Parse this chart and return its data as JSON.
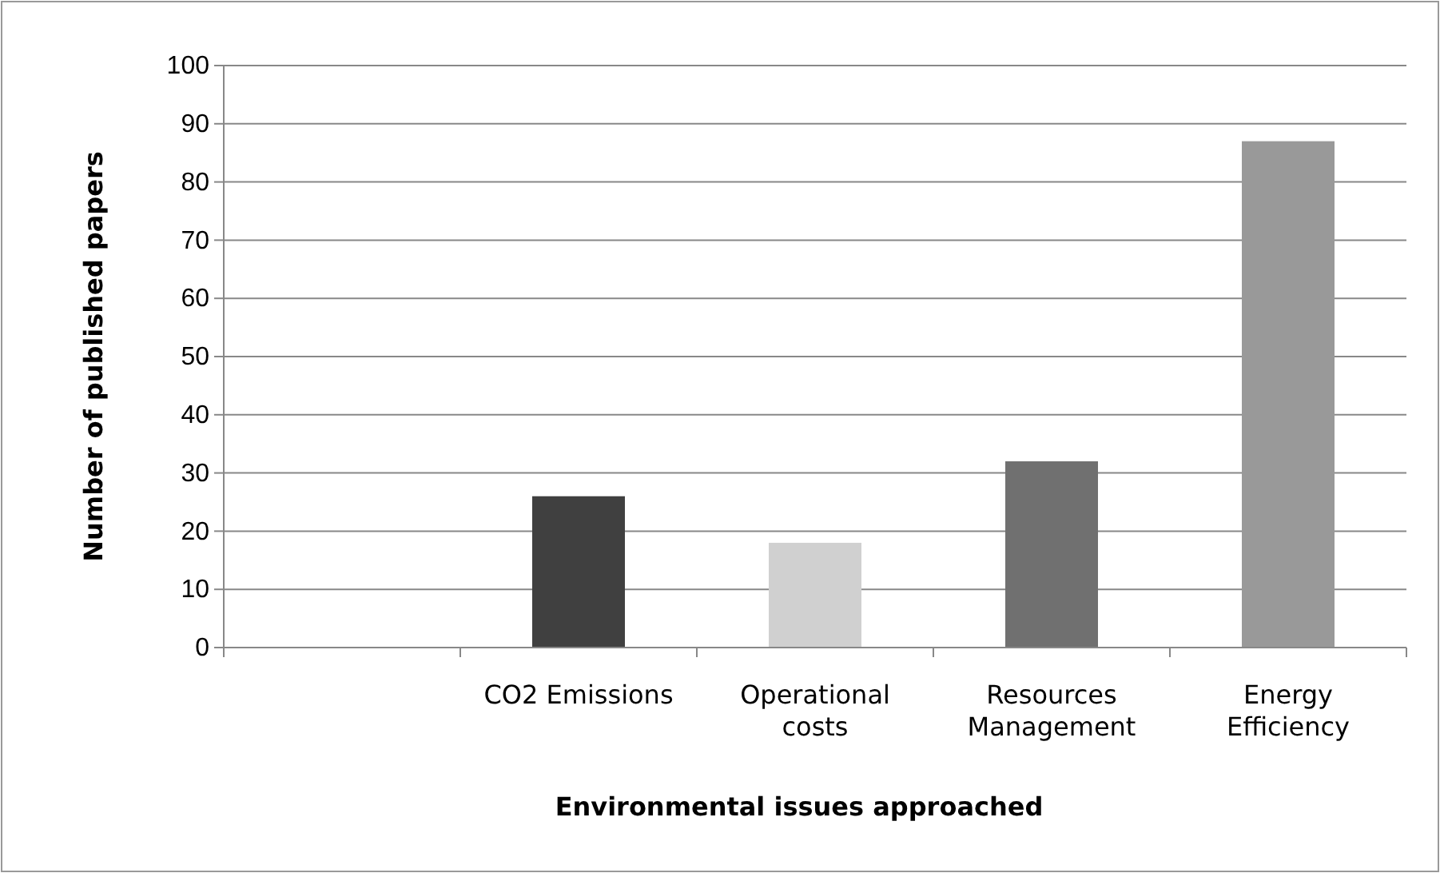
{
  "chart_data": {
    "type": "bar",
    "xlabel": "Environmental issues approached",
    "ylabel": "Number of published papers",
    "categories": [
      null,
      "CO2 Emissions",
      "Operational costs",
      "Resources Management",
      "Energy Efficiency"
    ],
    "values": [
      null,
      26,
      18,
      32,
      87
    ],
    "colors": [
      null,
      "#404040",
      "#d0d0d0",
      "#707070",
      "#999999"
    ],
    "ylim": [
      0,
      100
    ],
    "yticks": [
      0,
      10,
      20,
      30,
      40,
      50,
      60,
      70,
      80,
      90,
      100
    ],
    "grid": "y"
  }
}
